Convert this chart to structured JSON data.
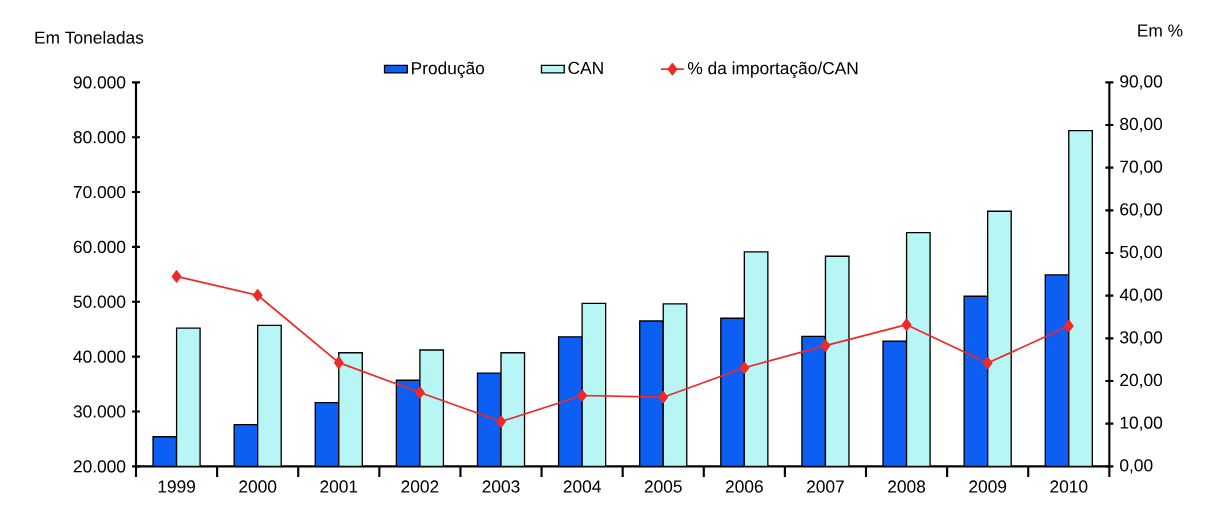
{
  "chart_data": {
    "type": "bar",
    "ylabel": "Em Toneladas",
    "y2label": "Em %",
    "categories": [
      "1999",
      "2000",
      "2001",
      "2002",
      "2003",
      "2004",
      "2005",
      "2006",
      "2007",
      "2008",
      "2009",
      "2010"
    ],
    "series": [
      {
        "name": "Produção",
        "color": "#0d5ef2",
        "values": [
          25400,
          27600,
          31600,
          35700,
          37000,
          43600,
          46500,
          47000,
          43700,
          42800,
          51000,
          54900
        ]
      },
      {
        "name": "CAN",
        "color": "#b8f6f6",
        "values": [
          45200,
          45700,
          40700,
          41200,
          40700,
          49700,
          49600,
          59100,
          58300,
          62600,
          66500,
          81200
        ]
      },
      {
        "name": "% da importação/CAN",
        "type": "line",
        "axis": "y2",
        "color": "#f02828",
        "marker": "diamond",
        "values": [
          44.5,
          40.1,
          24.3,
          17.3,
          10.5,
          16.6,
          16.2,
          23.1,
          28.3,
          33.2,
          24.2,
          32.9
        ]
      }
    ],
    "ylim": [
      20000,
      90000
    ],
    "yticks": [
      {
        "value": 20000,
        "label": "20.000"
      },
      {
        "value": 30000,
        "label": "30.000"
      },
      {
        "value": 40000,
        "label": "40.000"
      },
      {
        "value": 50000,
        "label": "50.000"
      },
      {
        "value": 60000,
        "label": "60.000"
      },
      {
        "value": 70000,
        "label": "70.000"
      },
      {
        "value": 80000,
        "label": "80.000"
      },
      {
        "value": 90000,
        "label": "90.000"
      }
    ],
    "y2lim": [
      0,
      90
    ],
    "y2ticks": [
      {
        "value": 0,
        "label": "0,00"
      },
      {
        "value": 10,
        "label": "10,00"
      },
      {
        "value": 20,
        "label": "20,00"
      },
      {
        "value": 30,
        "label": "30,00"
      },
      {
        "value": 40,
        "label": "40,00"
      },
      {
        "value": 50,
        "label": "50,00"
      },
      {
        "value": 60,
        "label": "60,00"
      },
      {
        "value": 70,
        "label": "70,00"
      },
      {
        "value": 80,
        "label": "80,00"
      },
      {
        "value": 90,
        "label": "90,00"
      }
    ],
    "legend": "top",
    "grid": false
  }
}
